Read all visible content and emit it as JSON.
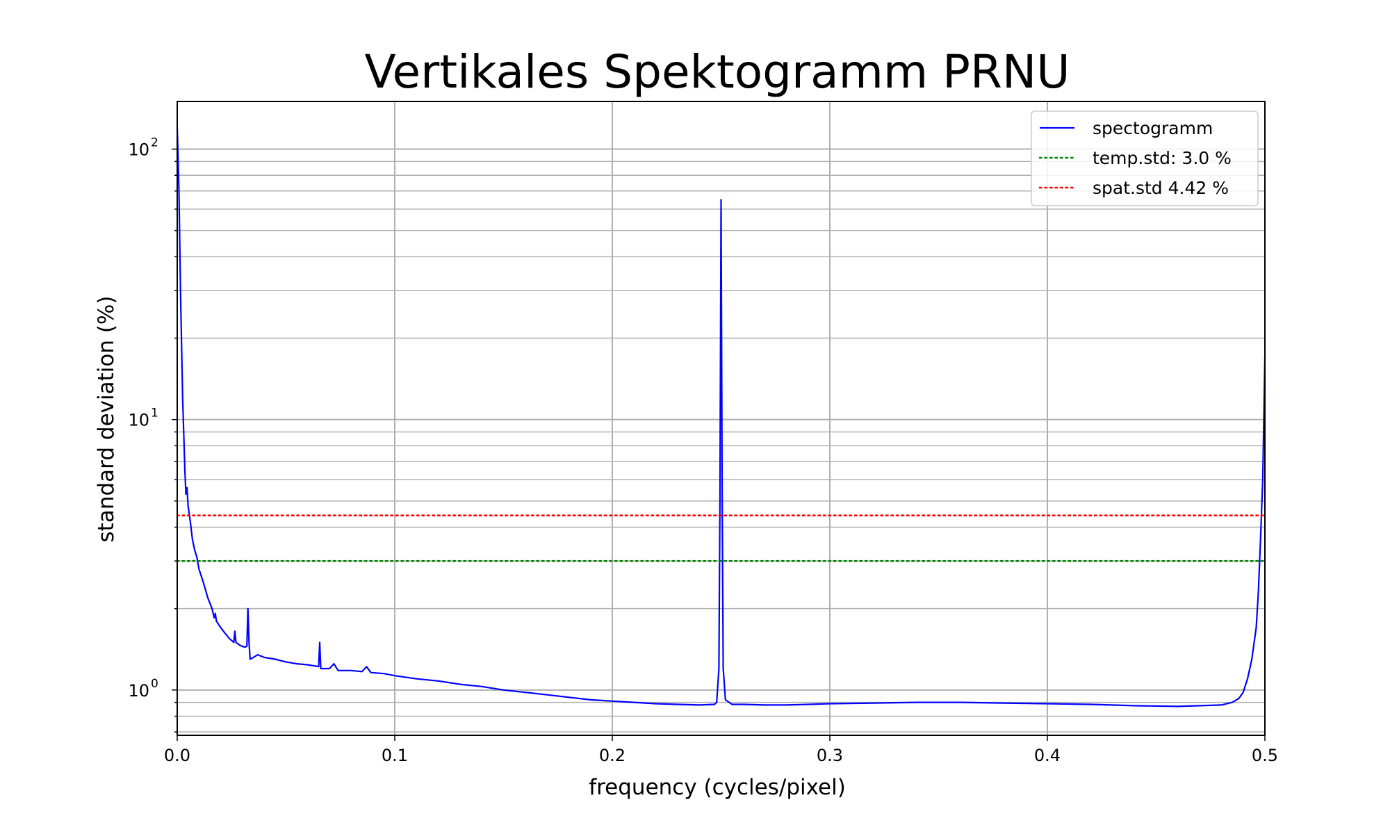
{
  "chart_data": {
    "type": "line",
    "title": "Vertikales Spektogramm PRNU",
    "xlabel": "frequency (cycles/pixel)",
    "ylabel": "standard deviation (%)",
    "xlim": [
      0.0,
      0.5
    ],
    "ylim": [
      0.68,
      150
    ],
    "yscale": "log",
    "grid": true,
    "legend_position": "upper right",
    "x_ticks": [
      {
        "value": 0.0,
        "label": "0.0"
      },
      {
        "value": 0.1,
        "label": "0.1"
      },
      {
        "value": 0.2,
        "label": "0.2"
      },
      {
        "value": 0.3,
        "label": "0.3"
      },
      {
        "value": 0.4,
        "label": "0.4"
      },
      {
        "value": 0.5,
        "label": "0.5"
      }
    ],
    "y_ticks": [
      {
        "value": 1,
        "base": "10",
        "exp": "0"
      },
      {
        "value": 10,
        "base": "10",
        "exp": "1"
      },
      {
        "value": 100,
        "base": "10",
        "exp": "2"
      }
    ],
    "series": [
      {
        "name": "spectogramm",
        "style": "solid",
        "color": "#0000ff",
        "points": [
          [
            0.0,
            120
          ],
          [
            0.0008,
            70
          ],
          [
            0.0015,
            30
          ],
          [
            0.0025,
            12
          ],
          [
            0.0035,
            6.5
          ],
          [
            0.004,
            5.3
          ],
          [
            0.0045,
            5.6
          ],
          [
            0.005,
            4.8
          ],
          [
            0.006,
            4.2
          ],
          [
            0.007,
            3.6
          ],
          [
            0.008,
            3.3
          ],
          [
            0.009,
            3.1
          ],
          [
            0.01,
            2.8
          ],
          [
            0.012,
            2.5
          ],
          [
            0.014,
            2.2
          ],
          [
            0.016,
            2.0
          ],
          [
            0.017,
            1.85
          ],
          [
            0.0175,
            1.92
          ],
          [
            0.018,
            1.8
          ],
          [
            0.02,
            1.7
          ],
          [
            0.022,
            1.62
          ],
          [
            0.024,
            1.55
          ],
          [
            0.026,
            1.5
          ],
          [
            0.0265,
            1.65
          ],
          [
            0.027,
            1.5
          ],
          [
            0.029,
            1.46
          ],
          [
            0.031,
            1.44
          ],
          [
            0.032,
            1.45
          ],
          [
            0.0325,
            2.0
          ],
          [
            0.033,
            1.5
          ],
          [
            0.0335,
            1.3
          ],
          [
            0.035,
            1.32
          ],
          [
            0.037,
            1.35
          ],
          [
            0.04,
            1.32
          ],
          [
            0.045,
            1.3
          ],
          [
            0.05,
            1.27
          ],
          [
            0.055,
            1.25
          ],
          [
            0.06,
            1.24
          ],
          [
            0.065,
            1.22
          ],
          [
            0.0655,
            1.5
          ],
          [
            0.066,
            1.2
          ],
          [
            0.07,
            1.2
          ],
          [
            0.072,
            1.25
          ],
          [
            0.074,
            1.18
          ],
          [
            0.08,
            1.18
          ],
          [
            0.085,
            1.17
          ],
          [
            0.087,
            1.22
          ],
          [
            0.089,
            1.16
          ],
          [
            0.095,
            1.15
          ],
          [
            0.1,
            1.13
          ],
          [
            0.11,
            1.1
          ],
          [
            0.12,
            1.08
          ],
          [
            0.13,
            1.05
          ],
          [
            0.14,
            1.03
          ],
          [
            0.15,
            1.0
          ],
          [
            0.16,
            0.98
          ],
          [
            0.17,
            0.96
          ],
          [
            0.18,
            0.94
          ],
          [
            0.19,
            0.92
          ],
          [
            0.2,
            0.91
          ],
          [
            0.21,
            0.9
          ],
          [
            0.22,
            0.89
          ],
          [
            0.23,
            0.885
          ],
          [
            0.24,
            0.88
          ],
          [
            0.247,
            0.885
          ],
          [
            0.248,
            0.9
          ],
          [
            0.249,
            1.2
          ],
          [
            0.2495,
            5.0
          ],
          [
            0.25,
            65
          ],
          [
            0.2505,
            5.0
          ],
          [
            0.251,
            1.2
          ],
          [
            0.252,
            0.92
          ],
          [
            0.255,
            0.885
          ],
          [
            0.26,
            0.885
          ],
          [
            0.27,
            0.88
          ],
          [
            0.28,
            0.88
          ],
          [
            0.29,
            0.885
          ],
          [
            0.3,
            0.89
          ],
          [
            0.32,
            0.895
          ],
          [
            0.34,
            0.9
          ],
          [
            0.36,
            0.9
          ],
          [
            0.38,
            0.895
          ],
          [
            0.4,
            0.89
          ],
          [
            0.42,
            0.885
          ],
          [
            0.44,
            0.875
          ],
          [
            0.46,
            0.87
          ],
          [
            0.47,
            0.875
          ],
          [
            0.48,
            0.88
          ],
          [
            0.485,
            0.9
          ],
          [
            0.488,
            0.93
          ],
          [
            0.49,
            0.98
          ],
          [
            0.492,
            1.1
          ],
          [
            0.494,
            1.3
          ],
          [
            0.496,
            1.7
          ],
          [
            0.497,
            2.3
          ],
          [
            0.498,
            3.6
          ],
          [
            0.499,
            6.0
          ],
          [
            0.4995,
            10.0
          ],
          [
            0.5,
            17.0
          ]
        ]
      },
      {
        "name": "temp.std: 3.0 %",
        "style": "dotted",
        "color": "#008000",
        "value": 3.0
      },
      {
        "name": "spat.std 4.42 %",
        "style": "dotted",
        "color": "#ff0000",
        "value": 4.42
      }
    ]
  }
}
